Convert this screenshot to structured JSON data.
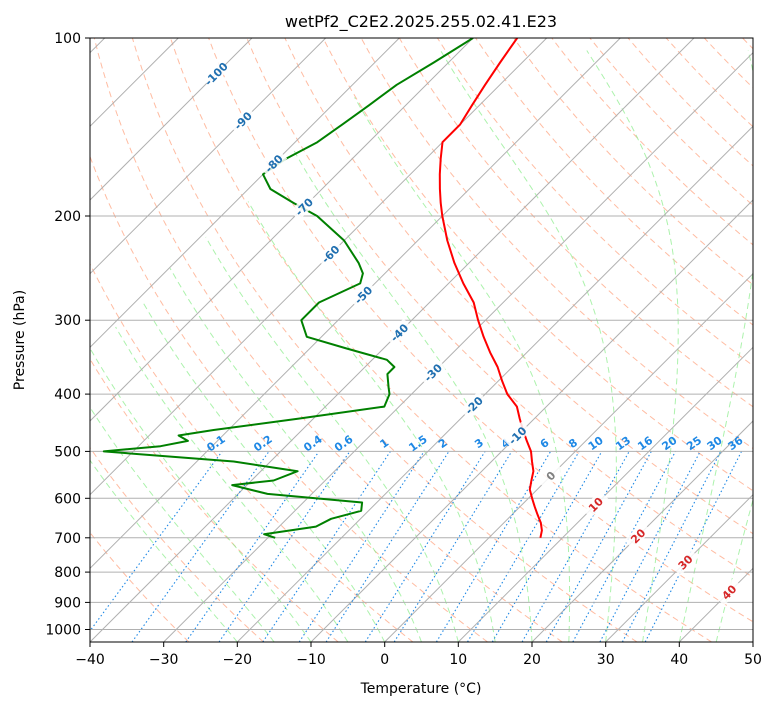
{
  "chart_data": {
    "type": "line",
    "title": "wetPf2_C2E2.2025.255.02.41.E23",
    "xlabel": "Temperature (°C)",
    "ylabel": "Pressure (hPa)",
    "xlim": [
      -40,
      50
    ],
    "ylim": [
      1050,
      100
    ],
    "y_scale": "log",
    "skew": "skew-T",
    "grid": true,
    "x_ticks": [
      "−40",
      "−30",
      "−20",
      "−10",
      "0",
      "10",
      "20",
      "30",
      "40",
      "50"
    ],
    "y_ticks": [
      "100",
      "200",
      "300",
      "400",
      "500",
      "600",
      "700",
      "800",
      "900",
      "1000"
    ],
    "series": [
      {
        "kind": "temperature",
        "color": "#ff0000",
        "points": [
          {
            "p": 100,
            "t": -64
          },
          {
            "p": 110,
            "t": -63
          },
          {
            "p": 120,
            "t": -62
          },
          {
            "p": 130,
            "t": -61
          },
          {
            "p": 140,
            "t": -60
          },
          {
            "p": 150,
            "t": -60
          },
          {
            "p": 160,
            "t": -58
          },
          {
            "p": 170,
            "t": -56
          },
          {
            "p": 180,
            "t": -54
          },
          {
            "p": 190,
            "t": -52
          },
          {
            "p": 200,
            "t": -50
          },
          {
            "p": 220,
            "t": -46
          },
          {
            "p": 240,
            "t": -42
          },
          {
            "p": 260,
            "t": -38
          },
          {
            "p": 280,
            "t": -34
          },
          {
            "p": 300,
            "t": -31
          },
          {
            "p": 320,
            "t": -28
          },
          {
            "p": 340,
            "t": -25
          },
          {
            "p": 360,
            "t": -22
          },
          {
            "p": 380,
            "t": -19.5
          },
          {
            "p": 400,
            "t": -17
          },
          {
            "p": 420,
            "t": -14
          },
          {
            "p": 440,
            "t": -12
          },
          {
            "p": 460,
            "t": -10
          },
          {
            "p": 480,
            "t": -8
          },
          {
            "p": 500,
            "t": -6
          },
          {
            "p": 520,
            "t": -4.5
          },
          {
            "p": 540,
            "t": -3
          },
          {
            "p": 560,
            "t": -2
          },
          {
            "p": 580,
            "t": -1
          },
          {
            "p": 600,
            "t": 0.5
          },
          {
            "p": 620,
            "t": 2
          },
          {
            "p": 640,
            "t": 3.5
          },
          {
            "p": 660,
            "t": 5
          },
          {
            "p": 680,
            "t": 6.2
          },
          {
            "p": 700,
            "t": 7
          }
        ]
      },
      {
        "kind": "dewpoint",
        "color": "#008000",
        "points": [
          {
            "p": 100,
            "t": -70
          },
          {
            "p": 110,
            "t": -72
          },
          {
            "p": 120,
            "t": -74
          },
          {
            "p": 130,
            "t": -75
          },
          {
            "p": 140,
            "t": -76
          },
          {
            "p": 150,
            "t": -77
          },
          {
            "p": 160,
            "t": -79
          },
          {
            "p": 170,
            "t": -80
          },
          {
            "p": 180,
            "t": -77
          },
          {
            "p": 190,
            "t": -72
          },
          {
            "p": 200,
            "t": -67
          },
          {
            "p": 220,
            "t": -60
          },
          {
            "p": 240,
            "t": -55
          },
          {
            "p": 250,
            "t": -53
          },
          {
            "p": 260,
            "t": -52
          },
          {
            "p": 280,
            "t": -55
          },
          {
            "p": 300,
            "t": -55
          },
          {
            "p": 320,
            "t": -52
          },
          {
            "p": 335,
            "t": -45
          },
          {
            "p": 350,
            "t": -38
          },
          {
            "p": 360,
            "t": -36
          },
          {
            "p": 370,
            "t": -36
          },
          {
            "p": 390,
            "t": -34
          },
          {
            "p": 400,
            "t": -33
          },
          {
            "p": 420,
            "t": -32
          },
          {
            "p": 440,
            "t": -42
          },
          {
            "p": 460,
            "t": -52
          },
          {
            "p": 470,
            "t": -56
          },
          {
            "p": 480,
            "t": -54
          },
          {
            "p": 490,
            "t": -57
          },
          {
            "p": 500,
            "t": -64
          },
          {
            "p": 520,
            "t": -45
          },
          {
            "p": 540,
            "t": -35
          },
          {
            "p": 560,
            "t": -37
          },
          {
            "p": 570,
            "t": -42
          },
          {
            "p": 590,
            "t": -36
          },
          {
            "p": 610,
            "t": -22
          },
          {
            "p": 630,
            "t": -21
          },
          {
            "p": 650,
            "t": -24
          },
          {
            "p": 670,
            "t": -25
          },
          {
            "p": 690,
            "t": -31
          },
          {
            "p": 700,
            "t": -29
          }
        ]
      }
    ],
    "isotherm_labels": [
      "-100",
      "-90",
      "-80",
      "-70",
      "-60",
      "-50",
      "-40",
      "-30",
      "-20",
      "-10",
      "0",
      "10",
      "20",
      "30",
      "40"
    ],
    "mixing_ratio_labels": [
      "0.1",
      "0.2",
      "0.4",
      "0.6",
      "1",
      "1.5",
      "2",
      "3",
      "4",
      "6",
      "8",
      "10",
      "13",
      "16",
      "20",
      "25",
      "30",
      "36"
    ],
    "colors": {
      "isotherm": "#b0b0b0",
      "isotherm_label_cold": "#1f6fb0",
      "isotherm_label_warm": "#d62728",
      "isotherm_label_zero": "#808080",
      "dry_adiabat": "#ffa07a",
      "moist_adiabat": "#90ee90",
      "mixing_ratio": "#1e88e5",
      "frame": "#000000"
    }
  }
}
